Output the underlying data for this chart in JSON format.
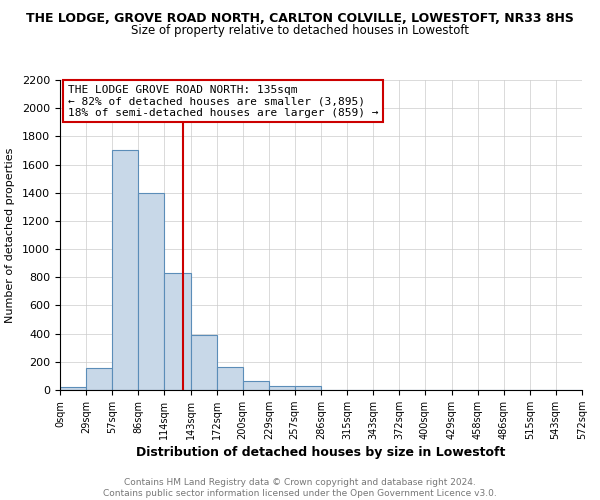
{
  "title_line1": "THE LODGE, GROVE ROAD NORTH, CARLTON COLVILLE, LOWESTOFT, NR33 8HS",
  "title_line2": "Size of property relative to detached houses in Lowestoft",
  "xlabel": "Distribution of detached houses by size in Lowestoft",
  "ylabel": "Number of detached properties",
  "bin_edges": [
    0,
    29,
    57,
    86,
    114,
    143,
    172,
    200,
    229,
    257,
    286,
    315,
    343,
    372,
    400,
    429,
    458,
    486,
    515,
    543,
    572
  ],
  "bar_heights": [
    20,
    155,
    1700,
    1395,
    830,
    390,
    165,
    65,
    30,
    25,
    0,
    0,
    0,
    0,
    0,
    0,
    0,
    0,
    0,
    0
  ],
  "bar_color": "#c8d8e8",
  "bar_edge_color": "#5b8db8",
  "property_line_x": 135,
  "property_line_color": "#cc0000",
  "annotation_title": "THE LODGE GROVE ROAD NORTH: 135sqm",
  "annotation_line1": "← 82% of detached houses are smaller (3,895)",
  "annotation_line2": "18% of semi-detached houses are larger (859) →",
  "annotation_box_color": "#ffffff",
  "annotation_box_edge_color": "#cc0000",
  "tick_labels": [
    "0sqm",
    "29sqm",
    "57sqm",
    "86sqm",
    "114sqm",
    "143sqm",
    "172sqm",
    "200sqm",
    "229sqm",
    "257sqm",
    "286sqm",
    "315sqm",
    "343sqm",
    "372sqm",
    "400sqm",
    "429sqm",
    "458sqm",
    "486sqm",
    "515sqm",
    "543sqm",
    "572sqm"
  ],
  "ylim": [
    0,
    2200
  ],
  "yticks": [
    0,
    200,
    400,
    600,
    800,
    1000,
    1200,
    1400,
    1600,
    1800,
    2000,
    2200
  ],
  "footer_line1": "Contains HM Land Registry data © Crown copyright and database right 2024.",
  "footer_line2": "Contains public sector information licensed under the Open Government Licence v3.0.",
  "background_color": "#ffffff",
  "grid_color": "#cccccc",
  "title_fontsize": 9,
  "subtitle_fontsize": 8.5,
  "xlabel_fontsize": 9,
  "ylabel_fontsize": 8,
  "tick_fontsize": 7,
  "annotation_fontsize": 8,
  "footer_fontsize": 6.5
}
